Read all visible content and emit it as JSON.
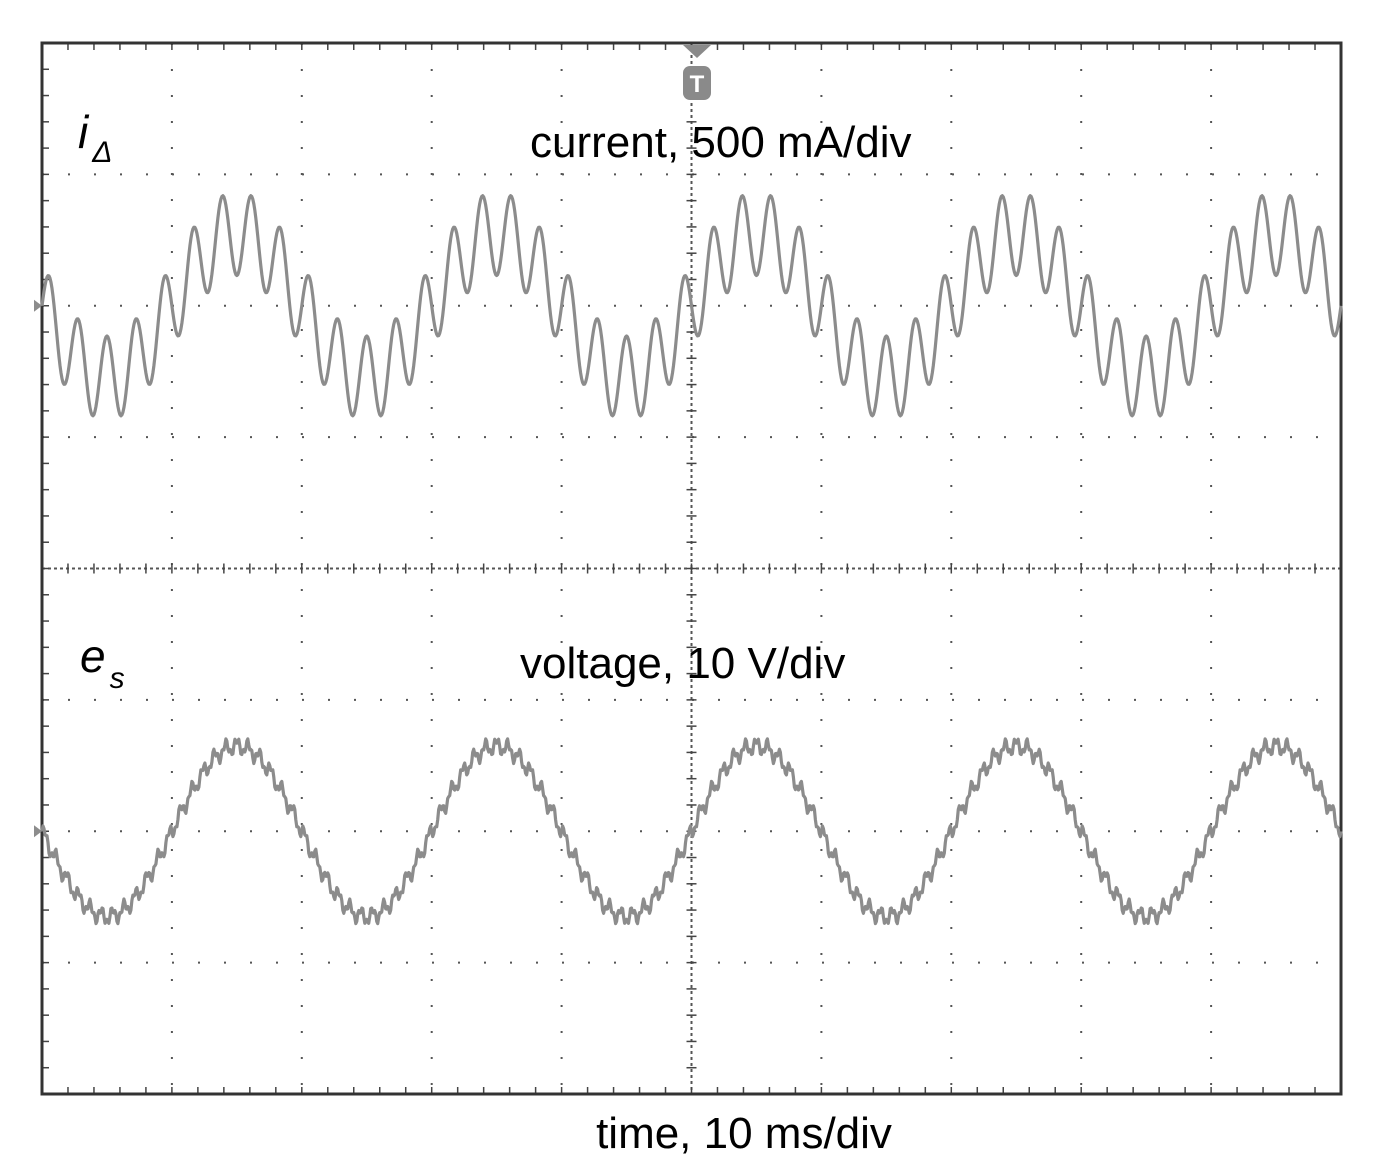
{
  "chart_data": {
    "type": "line",
    "instrument": "oscilloscope",
    "grid": true,
    "divisions": {
      "x": 10,
      "y": 8
    },
    "xlabel": "time, 10 ms/div",
    "trigger_marker": "T",
    "x_unit": "div",
    "y_unit": "div",
    "series": [
      {
        "name": "iΔ",
        "symbol": "i",
        "subscript": "Δ",
        "annotation": "current, 500 mA/div",
        "offset_div": 6,
        "fundamental_periods_div": 2,
        "fundamental_amplitude_div": 0.55,
        "ripple_cycles_per_period": 9,
        "ripple_amplitude_div": 0.32,
        "x": [
          0,
          0.25,
          0.5,
          0.75,
          1.0,
          1.25,
          1.5,
          1.75,
          2.0,
          2.25,
          2.5,
          2.75,
          3.0,
          3.25,
          3.5,
          3.75,
          4.0,
          4.25,
          4.5,
          4.75,
          5.0,
          5.25,
          5.5,
          5.75,
          6.0,
          6.25,
          6.5,
          6.75,
          7.0,
          7.25,
          7.5,
          7.75,
          8.0,
          8.25,
          8.5,
          8.75,
          9.0,
          9.25,
          9.5,
          9.75,
          10.0
        ],
        "y": [
          5.9,
          5.5,
          5.45,
          5.65,
          6.0,
          6.4,
          6.55,
          6.5,
          6.1,
          5.6,
          5.45,
          5.55,
          5.95,
          6.35,
          6.6,
          6.45,
          6.0,
          5.55,
          5.4,
          5.6,
          6.0,
          6.4,
          6.6,
          6.45,
          6.05,
          5.6,
          5.4,
          5.55,
          6.0,
          6.35,
          6.6,
          6.45,
          6.05,
          5.6,
          5.45,
          5.55,
          6.0,
          6.4,
          6.6,
          6.4,
          6.0
        ]
      },
      {
        "name": "es",
        "symbol": "e",
        "subscript": "s",
        "annotation": "voltage, 10 V/div",
        "offset_div": 2,
        "fundamental_periods_div": 2,
        "fundamental_amplitude_div": 0.65,
        "ripple_amplitude_div": 0.05,
        "x": [
          0,
          0.25,
          0.5,
          0.75,
          1.0,
          1.25,
          1.5,
          1.75,
          2.0,
          2.25,
          2.5,
          2.75,
          3.0,
          3.25,
          3.5,
          3.75,
          4.0,
          4.25,
          4.5,
          4.75,
          5.0,
          5.25,
          5.5,
          5.75,
          6.0,
          6.25,
          6.5,
          6.75,
          7.0,
          7.25,
          7.5,
          7.75,
          8.0,
          8.25,
          8.5,
          8.75,
          9.0,
          9.25,
          9.5,
          9.75,
          10.0
        ],
        "y": [
          1.95,
          1.55,
          1.35,
          1.5,
          1.95,
          2.4,
          2.65,
          2.45,
          2.0,
          1.55,
          1.35,
          1.5,
          1.95,
          2.4,
          2.65,
          2.45,
          2.0,
          1.55,
          1.35,
          1.5,
          2.0,
          2.45,
          2.65,
          2.45,
          2.0,
          1.55,
          1.35,
          1.5,
          2.0,
          2.45,
          2.65,
          2.45,
          2.0,
          1.55,
          1.35,
          1.5,
          2.0,
          2.45,
          2.65,
          2.4,
          1.95
        ]
      }
    ]
  }
}
